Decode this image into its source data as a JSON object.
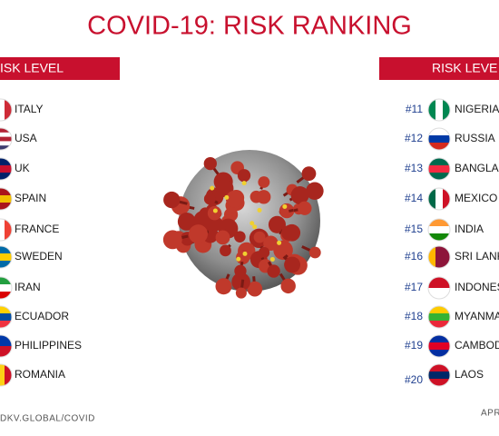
{
  "header": {
    "title": "COVID-19: RISK RANKING"
  },
  "left": {
    "heading": "ISK LEVEL",
    "countries": [
      "ITALY",
      "USA",
      "UK",
      "SPAIN",
      "FRANCE",
      "SWEDEN",
      "IRAN",
      "ECUADOR",
      "PHILIPPINES",
      "ROMANIA"
    ]
  },
  "right": {
    "heading": "RISK LEVE",
    "ranks": [
      "#11",
      "#12",
      "#13",
      "#14",
      "#15",
      "#16",
      "#17",
      "#18",
      "#19",
      "#20"
    ],
    "countries": [
      "NIGERIA",
      "RUSSIA",
      "BANGLAD",
      "MEXICO",
      "INDIA",
      "SRI LANK",
      "INDONES",
      "MYANMA",
      "CAMBOD",
      "LAOS"
    ]
  },
  "footer": {
    "left": "DKV.GLOBAL/COVID",
    "right": "APRI"
  }
}
